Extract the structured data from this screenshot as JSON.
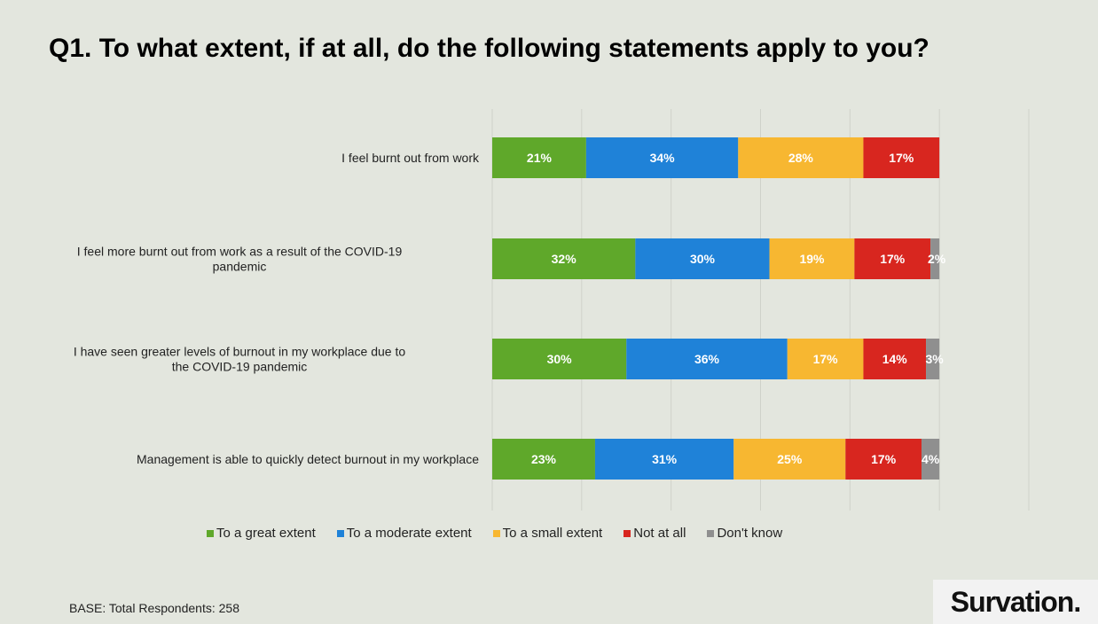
{
  "page": {
    "title": "Q1. To what extent, if at all, do the following statements apply to you?",
    "base_note": "BASE: Total Respondents: 258",
    "brand": "Survation."
  },
  "chart_data": {
    "type": "bar",
    "orientation": "horizontal",
    "stacked": true,
    "value_unit": "%",
    "xlim": [
      0,
      120
    ],
    "grid": true,
    "legend_position": "bottom",
    "categories": [
      "I feel burnt out from work",
      "I feel more burnt out from work as a result of the COVID-19 pandemic",
      "I have seen greater levels of burnout in my workplace due to the COVID-19 pandemic",
      "Management is able to quickly detect burnout in my workplace"
    ],
    "series": [
      {
        "name": "To a great extent",
        "color": "#5fa82a",
        "values": [
          21,
          32,
          30,
          23
        ]
      },
      {
        "name": "To a moderate extent",
        "color": "#1f82d8",
        "values": [
          34,
          30,
          36,
          31
        ]
      },
      {
        "name": "To a small extent",
        "color": "#f7b731",
        "values": [
          28,
          19,
          17,
          25
        ]
      },
      {
        "name": "Not at all",
        "color": "#d8261f",
        "values": [
          17,
          17,
          14,
          17
        ]
      },
      {
        "name": "Don't know",
        "color": "#8f8f8f",
        "values": [
          0,
          2,
          3,
          4
        ]
      }
    ]
  }
}
